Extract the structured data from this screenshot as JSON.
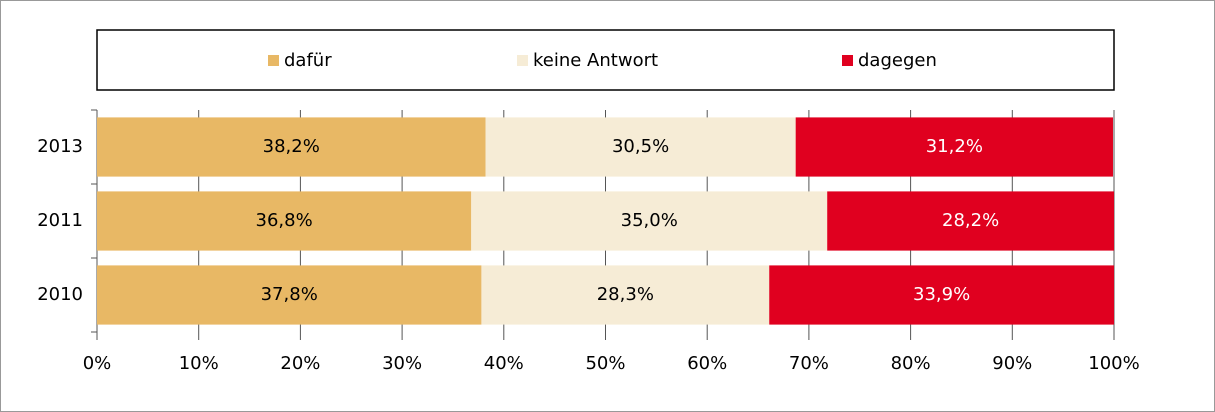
{
  "chart_data": {
    "type": "stacked_barh",
    "categories": [
      "2013",
      "2011",
      "2010"
    ],
    "series": [
      {
        "name": "dafür",
        "color": "#e8b865",
        "values": [
          38.2,
          36.8,
          37.8
        ],
        "value_labels": [
          "38,2%",
          "36,8%",
          "37,8%"
        ]
      },
      {
        "name": "keine Antwort",
        "color": "#f6ecd6",
        "values": [
          30.5,
          35.0,
          28.3
        ],
        "value_labels": [
          "30,5%",
          "35,0%",
          "28,3%"
        ]
      },
      {
        "name": "dagegen",
        "color": "#e0001f",
        "values": [
          31.2,
          28.2,
          33.9
        ],
        "value_labels": [
          "31,2%",
          "28,2%",
          "33,9%"
        ]
      }
    ],
    "xlim": [
      0,
      100
    ],
    "xticks": [
      {
        "value": 0,
        "label": "0%"
      },
      {
        "value": 10,
        "label": "10%"
      },
      {
        "value": 20,
        "label": "20%"
      },
      {
        "value": 30,
        "label": "30%"
      },
      {
        "value": 40,
        "label": "40%"
      },
      {
        "value": 50,
        "label": "50%"
      },
      {
        "value": 60,
        "label": "60%"
      },
      {
        "value": 70,
        "label": "70%"
      },
      {
        "value": 80,
        "label": "80%"
      },
      {
        "value": 90,
        "label": "90%"
      },
      {
        "value": 100,
        "label": "100%"
      }
    ],
    "grid": true,
    "legend": "top"
  }
}
